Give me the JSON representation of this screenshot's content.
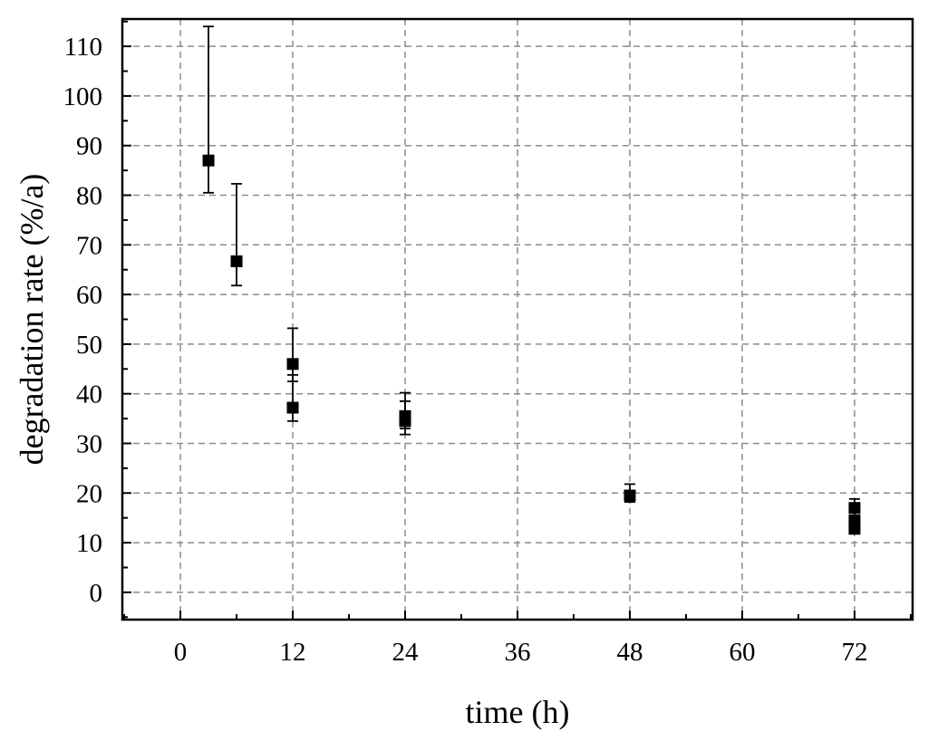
{
  "chart_data": {
    "type": "scatter",
    "title": "",
    "xlabel": "time (h)",
    "ylabel": "degradation rate (%/a)",
    "xlim": [
      -6.2,
      78.2
    ],
    "ylim": [
      -5.5,
      115.5
    ],
    "x_ticks": [
      0,
      12,
      24,
      36,
      48,
      60,
      72
    ],
    "y_ticks": [
      0,
      10,
      20,
      30,
      40,
      50,
      60,
      70,
      80,
      90,
      100,
      110
    ],
    "x_tick_labels": [
      "0",
      "12",
      "24",
      "36",
      "48",
      "60",
      "72"
    ],
    "y_tick_labels": [
      "0",
      "10",
      "20",
      "30",
      "40",
      "50",
      "60",
      "70",
      "80",
      "90",
      "100",
      "110"
    ],
    "grid": true,
    "legend": "none",
    "points": [
      {
        "x": 3,
        "y": 87,
        "y_err_low": 80.5,
        "y_err_high": 114
      },
      {
        "x": 6,
        "y": 66.7,
        "y_err_low": 61.8,
        "y_err_high": 82.3
      },
      {
        "x": 12,
        "y": 46,
        "y_err_low": 42.5,
        "y_err_high": 53.2
      },
      {
        "x": 12,
        "y": 37.2,
        "y_err_low": 34.5,
        "y_err_high": 43.8
      },
      {
        "x": 24,
        "y": 35.5,
        "y_err_low": 33,
        "y_err_high": 40.2
      },
      {
        "x": 24,
        "y": 34.5,
        "y_err_low": 31.8,
        "y_err_high": 38.5
      },
      {
        "x": 48,
        "y": 19.5,
        "y_err_low": 18.2,
        "y_err_high": 21.8
      },
      {
        "x": 72,
        "y": 17,
        "y_err_low": 15.5,
        "y_err_high": 18.8
      },
      {
        "x": 72,
        "y": 14.5,
        "y_err_low": 13.2,
        "y_err_high": 16
      },
      {
        "x": 72,
        "y": 12.8,
        "y_err_low": 11.8,
        "y_err_high": 14.2
      }
    ]
  }
}
